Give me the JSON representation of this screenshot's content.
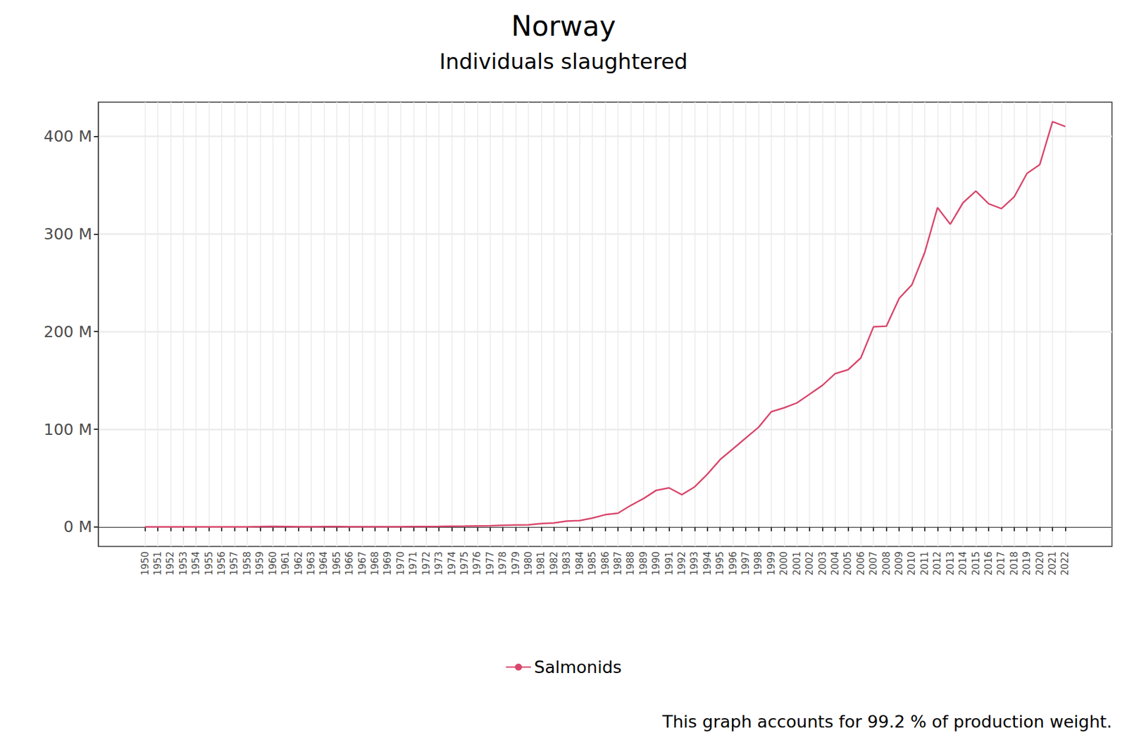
{
  "chart_data": {
    "type": "line",
    "title": "Norway",
    "subtitle": "Individuals slaughtered",
    "caption": "This graph accounts for 99.2 % of production weight.",
    "x": [
      1950,
      1951,
      1952,
      1953,
      1954,
      1955,
      1956,
      1957,
      1958,
      1959,
      1960,
      1961,
      1962,
      1963,
      1964,
      1965,
      1966,
      1967,
      1968,
      1969,
      1970,
      1971,
      1972,
      1973,
      1974,
      1975,
      1976,
      1977,
      1978,
      1979,
      1980,
      1981,
      1982,
      1983,
      1984,
      1985,
      1986,
      1987,
      1988,
      1989,
      1990,
      1991,
      1992,
      1993,
      1994,
      1995,
      1996,
      1997,
      1998,
      1999,
      2000,
      2001,
      2002,
      2003,
      2004,
      2005,
      2006,
      2007,
      2008,
      2009,
      2010,
      2011,
      2012,
      2013,
      2014,
      2015,
      2016,
      2017,
      2018,
      2019,
      2020,
      2021,
      2022
    ],
    "series": [
      {
        "name": "Salmonids",
        "color": "#d9466b",
        "values": [
          0,
          0,
          0,
          0,
          0,
          0,
          0,
          0,
          0.1,
          0.3,
          0.6,
          0.4,
          0.2,
          0.2,
          0.3,
          0.3,
          0.2,
          0.2,
          0.2,
          0.2,
          0.2,
          0.3,
          0.4,
          0.5,
          0.7,
          0.8,
          1.0,
          1.2,
          1.6,
          2.0,
          2.2,
          3.5,
          4,
          6,
          6.5,
          9,
          12.5,
          14,
          22,
          29,
          37.5,
          40,
          33,
          41,
          54,
          69,
          80,
          91,
          102,
          118,
          122,
          127,
          136,
          145,
          157,
          161,
          173,
          205,
          205.5,
          234,
          248,
          281,
          327,
          310,
          332,
          344,
          331,
          326,
          338,
          362,
          371,
          415,
          410
        ]
      }
    ],
    "xlim": [
      1946.35,
      2025.65
    ],
    "xticks": [
      1950,
      1951,
      1952,
      1953,
      1954,
      1955,
      1956,
      1957,
      1958,
      1959,
      1960,
      1961,
      1962,
      1963,
      1964,
      1965,
      1966,
      1967,
      1968,
      1969,
      1970,
      1971,
      1972,
      1973,
      1974,
      1975,
      1976,
      1977,
      1978,
      1979,
      1980,
      1981,
      1982,
      1983,
      1984,
      1985,
      1986,
      1987,
      1988,
      1989,
      1990,
      1991,
      1992,
      1993,
      1994,
      1995,
      1996,
      1997,
      1998,
      1999,
      2000,
      2001,
      2002,
      2003,
      2004,
      2005,
      2006,
      2007,
      2008,
      2009,
      2010,
      2011,
      2012,
      2013,
      2014,
      2015,
      2016,
      2017,
      2018,
      2019,
      2020,
      2021,
      2022
    ],
    "ylim": [
      -20,
      435
    ],
    "yticks": [
      {
        "value": 0,
        "label": "0 M"
      },
      {
        "value": 100,
        "label": "100 M"
      },
      {
        "value": 200,
        "label": "200 M"
      },
      {
        "value": 300,
        "label": "300 M"
      },
      {
        "value": 400,
        "label": "400 M"
      }
    ],
    "grid": true,
    "legend": "bottom"
  }
}
